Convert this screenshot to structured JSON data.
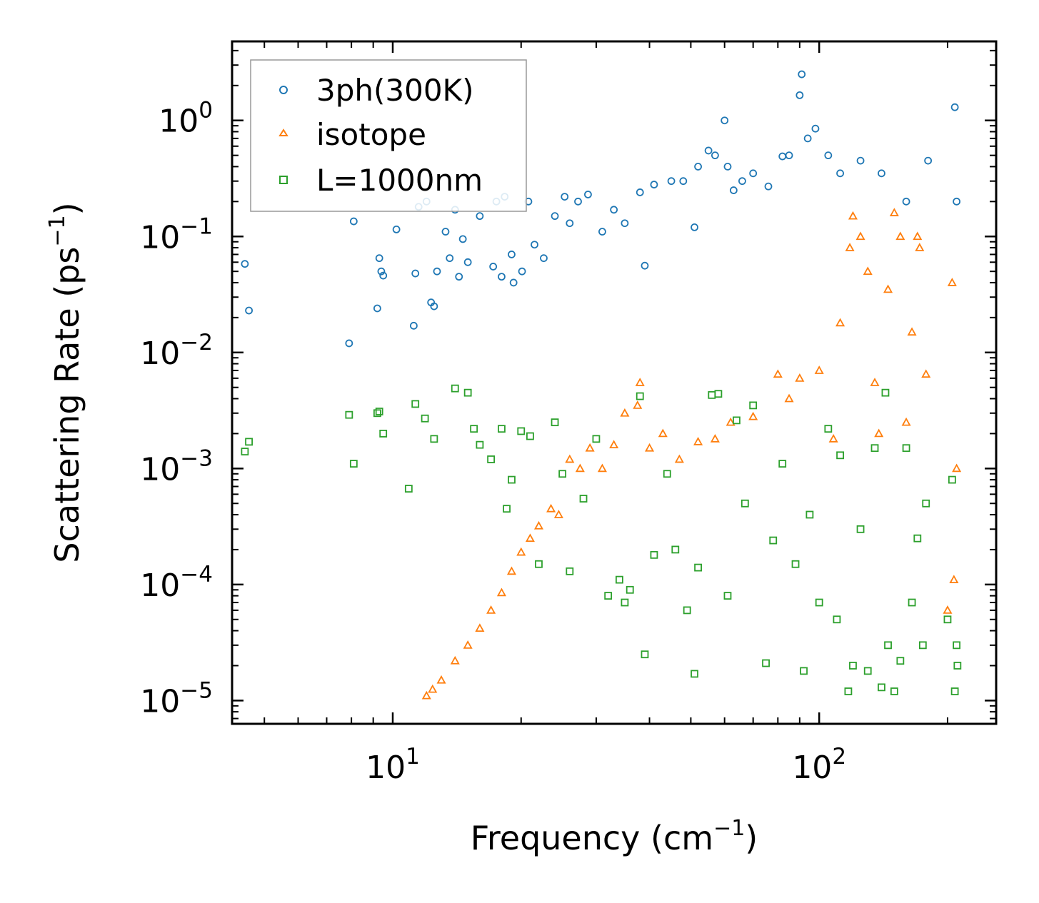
{
  "chart_data": {
    "type": "scatter",
    "xscale": "log",
    "yscale": "log",
    "xlabel": "Frequency (cm",
    "xlabel_sup": "−1",
    "xlabel_end": ")",
    "ylabel": "Scattering Rate (ps",
    "ylabel_sup": "−1",
    "ylabel_end": ")",
    "xlim": [
      4.2,
      260
    ],
    "ylim": [
      6.3e-06,
      4.8
    ],
    "xticks": [
      {
        "value": 10,
        "base": "10",
        "exp": "1"
      },
      {
        "value": 100,
        "base": "10",
        "exp": "2"
      }
    ],
    "yticks": [
      {
        "value": 1,
        "base": "10",
        "exp": "0"
      },
      {
        "value": 0.1,
        "base": "10",
        "exp": "−1"
      },
      {
        "value": 0.01,
        "base": "10",
        "exp": "−2"
      },
      {
        "value": 0.001,
        "base": "10",
        "exp": "−3"
      },
      {
        "value": 0.0001,
        "base": "10",
        "exp": "−4"
      },
      {
        "value": 1e-05,
        "base": "10",
        "exp": "−5"
      }
    ],
    "legend_position": "top-left",
    "series": [
      {
        "name": "3ph(300K)",
        "marker": "circle",
        "color": "#1f77b4",
        "points": [
          [
            4.5,
            0.058
          ],
          [
            4.6,
            0.023
          ],
          [
            7.9,
            0.012
          ],
          [
            8.1,
            0.135
          ],
          [
            9.2,
            0.024
          ],
          [
            9.3,
            0.065
          ],
          [
            9.4,
            0.05
          ],
          [
            9.5,
            0.046
          ],
          [
            10.2,
            0.115
          ],
          [
            11.2,
            0.017
          ],
          [
            11.3,
            0.048
          ],
          [
            11.5,
            0.18
          ],
          [
            12.0,
            0.2
          ],
          [
            12.3,
            0.027
          ],
          [
            12.5,
            0.025
          ],
          [
            12.7,
            0.05
          ],
          [
            13.3,
            0.11
          ],
          [
            13.6,
            0.065
          ],
          [
            14.0,
            0.17
          ],
          [
            14.3,
            0.045
          ],
          [
            14.6,
            0.095
          ],
          [
            15.0,
            0.06
          ],
          [
            16.0,
            0.15
          ],
          [
            17.2,
            0.055
          ],
          [
            17.5,
            0.2
          ],
          [
            18.0,
            0.045
          ],
          [
            18.3,
            0.22
          ],
          [
            19.0,
            0.07
          ],
          [
            19.2,
            0.04
          ],
          [
            20.1,
            0.05
          ],
          [
            20.8,
            0.2
          ],
          [
            21.5,
            0.085
          ],
          [
            22.6,
            0.065
          ],
          [
            24.0,
            0.15
          ],
          [
            25.3,
            0.22
          ],
          [
            26.0,
            0.13
          ],
          [
            27.2,
            0.2
          ],
          [
            28.7,
            0.23
          ],
          [
            31.0,
            0.11
          ],
          [
            33.0,
            0.17
          ],
          [
            35.0,
            0.13
          ],
          [
            38.0,
            0.24
          ],
          [
            39.0,
            0.056
          ],
          [
            41.0,
            0.28
          ],
          [
            45.0,
            0.3
          ],
          [
            48.0,
            0.3
          ],
          [
            51.0,
            0.12
          ],
          [
            52.0,
            0.4
          ],
          [
            55.0,
            0.55
          ],
          [
            57.0,
            0.5
          ],
          [
            60.0,
            1.0
          ],
          [
            61.0,
            0.4
          ],
          [
            63.0,
            0.25
          ],
          [
            66.0,
            0.3
          ],
          [
            70.0,
            0.35
          ],
          [
            76.0,
            0.27
          ],
          [
            82.0,
            0.49
          ],
          [
            85.0,
            0.5
          ],
          [
            90.0,
            1.65
          ],
          [
            91.0,
            2.5
          ],
          [
            94.0,
            0.7
          ],
          [
            98.0,
            0.85
          ],
          [
            105.0,
            0.5
          ],
          [
            112.0,
            0.35
          ],
          [
            125.0,
            0.45
          ],
          [
            140.0,
            0.35
          ],
          [
            160.0,
            0.2
          ],
          [
            180.0,
            0.45
          ],
          [
            208.0,
            1.3
          ],
          [
            210.0,
            0.2
          ]
        ]
      },
      {
        "name": "isotope",
        "marker": "triangle",
        "color": "#ff7f0e",
        "points": [
          [
            12.0,
            1.1e-05
          ],
          [
            12.4,
            1.25e-05
          ],
          [
            13.0,
            1.5e-05
          ],
          [
            14.0,
            2.2e-05
          ],
          [
            15.0,
            3e-05
          ],
          [
            16.0,
            4.2e-05
          ],
          [
            17.0,
            6e-05
          ],
          [
            18.0,
            8.5e-05
          ],
          [
            19.0,
            0.00013
          ],
          [
            20.0,
            0.00019
          ],
          [
            21.0,
            0.00025
          ],
          [
            22.0,
            0.00032
          ],
          [
            23.5,
            0.00045
          ],
          [
            24.5,
            0.0004
          ],
          [
            26.0,
            0.0012
          ],
          [
            27.5,
            0.001
          ],
          [
            29.0,
            0.0015
          ],
          [
            31.0,
            0.001
          ],
          [
            33.0,
            0.0016
          ],
          [
            35.0,
            0.003
          ],
          [
            37.5,
            0.0035
          ],
          [
            38.0,
            0.0055
          ],
          [
            40.0,
            0.0015
          ],
          [
            43.0,
            0.002
          ],
          [
            47.0,
            0.0012
          ],
          [
            52.0,
            0.0017
          ],
          [
            57.0,
            0.0018
          ],
          [
            62.0,
            0.0025
          ],
          [
            70.0,
            0.0028
          ],
          [
            80.0,
            0.0065
          ],
          [
            85.0,
            0.004
          ],
          [
            90.0,
            0.006
          ],
          [
            100.0,
            0.007
          ],
          [
            108.0,
            0.0018
          ],
          [
            112.0,
            0.018
          ],
          [
            118.0,
            0.08
          ],
          [
            120.0,
            0.15
          ],
          [
            125.0,
            0.1
          ],
          [
            130.0,
            0.05
          ],
          [
            135.0,
            0.0055
          ],
          [
            138.0,
            0.002
          ],
          [
            145.0,
            0.035
          ],
          [
            150.0,
            0.16
          ],
          [
            155.0,
            0.1
          ],
          [
            160.0,
            0.0025
          ],
          [
            165.0,
            0.015
          ],
          [
            170.0,
            0.1
          ],
          [
            172.0,
            0.08
          ],
          [
            178.0,
            0.0065
          ],
          [
            200.0,
            6e-05
          ],
          [
            205.0,
            0.04
          ],
          [
            207.0,
            0.00011
          ],
          [
            210.0,
            0.001
          ]
        ]
      },
      {
        "name": "L=1000nm",
        "marker": "square",
        "color": "#2ca02c",
        "points": [
          [
            4.5,
            0.0014
          ],
          [
            4.6,
            0.0017
          ],
          [
            7.9,
            0.0029
          ],
          [
            8.1,
            0.0011
          ],
          [
            9.2,
            0.003
          ],
          [
            9.3,
            0.0031
          ],
          [
            9.5,
            0.002
          ],
          [
            10.9,
            0.00067
          ],
          [
            11.3,
            0.0036
          ],
          [
            11.9,
            0.0027
          ],
          [
            12.5,
            0.0018
          ],
          [
            14.0,
            0.0049
          ],
          [
            15.0,
            0.0045
          ],
          [
            15.5,
            0.0022
          ],
          [
            16.0,
            0.0016
          ],
          [
            17.0,
            0.0012
          ],
          [
            18.0,
            0.0022
          ],
          [
            18.5,
            0.00045
          ],
          [
            19.0,
            0.0008
          ],
          [
            20.0,
            0.0021
          ],
          [
            21.0,
            0.0019
          ],
          [
            22.0,
            0.00015
          ],
          [
            24.0,
            0.0025
          ],
          [
            25.0,
            0.0009
          ],
          [
            26.0,
            0.00013
          ],
          [
            28.0,
            0.00055
          ],
          [
            30.0,
            0.0018
          ],
          [
            32.0,
            8e-05
          ],
          [
            34.0,
            0.00011
          ],
          [
            35.0,
            7e-05
          ],
          [
            36.0,
            9e-05
          ],
          [
            38.0,
            0.0042
          ],
          [
            39.0,
            2.5e-05
          ],
          [
            41.0,
            0.00018
          ],
          [
            44.0,
            0.0009
          ],
          [
            46.0,
            0.0002
          ],
          [
            49.0,
            6e-05
          ],
          [
            51.0,
            1.7e-05
          ],
          [
            52.0,
            0.00014
          ],
          [
            56.0,
            0.0043
          ],
          [
            58.0,
            0.0044
          ],
          [
            61.0,
            8e-05
          ],
          [
            64.0,
            0.0026
          ],
          [
            67.0,
            0.0005
          ],
          [
            70.0,
            0.0035
          ],
          [
            75.0,
            2.1e-05
          ],
          [
            78.0,
            0.00024
          ],
          [
            82.0,
            0.0011
          ],
          [
            88.0,
            0.00015
          ],
          [
            92.0,
            1.8e-05
          ],
          [
            95.0,
            0.0004
          ],
          [
            100.0,
            7e-05
          ],
          [
            105.0,
            0.0022
          ],
          [
            110.0,
            5e-05
          ],
          [
            112.0,
            0.0013
          ],
          [
            117.0,
            1.2e-05
          ],
          [
            120.0,
            2e-05
          ],
          [
            125.0,
            0.0003
          ],
          [
            130.0,
            1.8e-05
          ],
          [
            135.0,
            0.0015
          ],
          [
            140.0,
            1.3e-05
          ],
          [
            143.0,
            0.0045
          ],
          [
            145.0,
            3e-05
          ],
          [
            150.0,
            1.2e-05
          ],
          [
            155.0,
            2.2e-05
          ],
          [
            160.0,
            0.0015
          ],
          [
            165.0,
            7e-05
          ],
          [
            170.0,
            0.00025
          ],
          [
            175.0,
            3e-05
          ],
          [
            178.0,
            0.0005
          ],
          [
            200.0,
            5e-05
          ],
          [
            205.0,
            0.0008
          ],
          [
            208.0,
            1.2e-05
          ],
          [
            210.0,
            3e-05
          ],
          [
            211.0,
            2e-05
          ]
        ]
      }
    ]
  }
}
